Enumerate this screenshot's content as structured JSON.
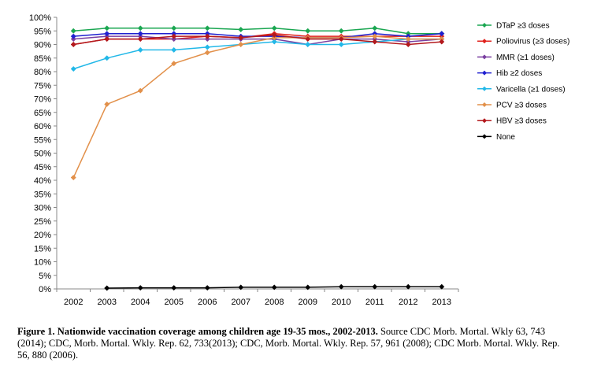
{
  "chart_data": {
    "type": "line",
    "title": "",
    "xlabel": "",
    "ylabel": "",
    "ylim": [
      0,
      100
    ],
    "y_tick_labels": [
      "0%",
      "5%",
      "10%",
      "15%",
      "20%",
      "25%",
      "30%",
      "35%",
      "40%",
      "45%",
      "50%",
      "55%",
      "60%",
      "65%",
      "70%",
      "75%",
      "80%",
      "85%",
      "90%",
      "95%",
      "100%"
    ],
    "categories": [
      "2002",
      "2003",
      "2004",
      "2005",
      "2006",
      "2007",
      "2008",
      "2009",
      "2010",
      "2011",
      "2012",
      "2013"
    ],
    "legend_position": "right",
    "grid": false,
    "series": [
      {
        "name": "DTaP ≥3 doses",
        "color": "#1aa651",
        "marker": "diamond",
        "values": [
          95,
          96,
          96,
          96,
          96,
          95.5,
          96,
          95,
          95,
          96,
          94,
          94
        ]
      },
      {
        "name": "Poliovirus (≥3 doses)",
        "color": "#e0201b",
        "marker": "diamond",
        "values": [
          90,
          92,
          92,
          92,
          93,
          92.5,
          94,
          93,
          93,
          93,
          93,
          93
        ]
      },
      {
        "name": "MMR (≥1 doses)",
        "color": "#7a3fa0",
        "marker": "diamond",
        "values": [
          92,
          93,
          93,
          92,
          92,
          92,
          92,
          90,
          92,
          92,
          91,
          92
        ]
      },
      {
        "name": "Hib  ≥2 doses",
        "color": "#1f1fd0",
        "marker": "diamond",
        "values": [
          93,
          94,
          94,
          94,
          94,
          93,
          93,
          92.5,
          92.5,
          94,
          93,
          94
        ]
      },
      {
        "name": "Varicella (≥1 doses)",
        "color": "#22b8e8",
        "marker": "diamond",
        "values": [
          81,
          85,
          88,
          88,
          89,
          90,
          91,
          90,
          90,
          91,
          92,
          92
        ]
      },
      {
        "name": "PCV ≥3 doses",
        "color": "#e2904a",
        "marker": "diamond",
        "values": [
          41,
          68,
          73,
          83,
          87,
          90,
          92.5,
          92.5,
          92.5,
          93,
          92,
          92
        ]
      },
      {
        "name": "HBV ≥3 doses",
        "color": "#b3191d",
        "marker": "diamond",
        "values": [
          90,
          92,
          92,
          93,
          93,
          92.5,
          93.5,
          92,
          92,
          91,
          90,
          91
        ]
      },
      {
        "name": "None",
        "color": "#000000",
        "marker": "diamond",
        "values": [
          null,
          0.3,
          0.4,
          0.4,
          0.4,
          0.6,
          0.6,
          0.6,
          0.8,
          0.8,
          0.8,
          0.8
        ]
      }
    ]
  },
  "caption": {
    "bold": "Figure 1. Nationwide vaccination coverage among children age 19-35 mos., 2002-2013.",
    "text": " Source CDC Morb. Mortal. Wkly 63, 743 (2014); CDC, Morb. Mortal. Wkly. Rep. 62, 733(2013); CDC, Morb. Mortal. Wkly. Rep. 57, 961 (2008); CDC Morb. Mortal. Wkly. Rep. 56, 880 (2006)."
  }
}
